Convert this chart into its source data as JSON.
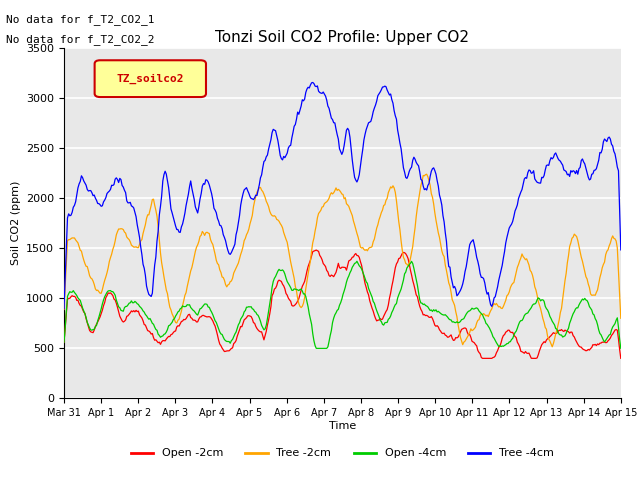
{
  "title": "Tonzi Soil CO2 Profile: Upper CO2",
  "ylabel": "Soil CO2 (ppm)",
  "xlabel": "Time",
  "annotations": [
    "No data for f_T2_CO2_1",
    "No data for f_T2_CO2_2"
  ],
  "legend_label": "TZ_soilco2",
  "ylim": [
    0,
    3500
  ],
  "series_labels": [
    "Open -2cm",
    "Tree -2cm",
    "Open -4cm",
    "Tree -4cm"
  ],
  "series_colors": [
    "#FF0000",
    "#FFA500",
    "#00CC00",
    "#0000FF"
  ],
  "plot_bg_color": "#E8E8E8",
  "x_tick_labels": [
    "Mar 31",
    "Apr 1",
    "Apr 2",
    "Apr 3",
    "Apr 4",
    "Apr 5",
    "Apr 6",
    "Apr 7",
    "Apr 8",
    "Apr 9",
    "Apr 10",
    "Apr 11",
    "Apr 12",
    "Apr 13",
    "Apr 14",
    "Apr 15"
  ],
  "n_points": 480
}
